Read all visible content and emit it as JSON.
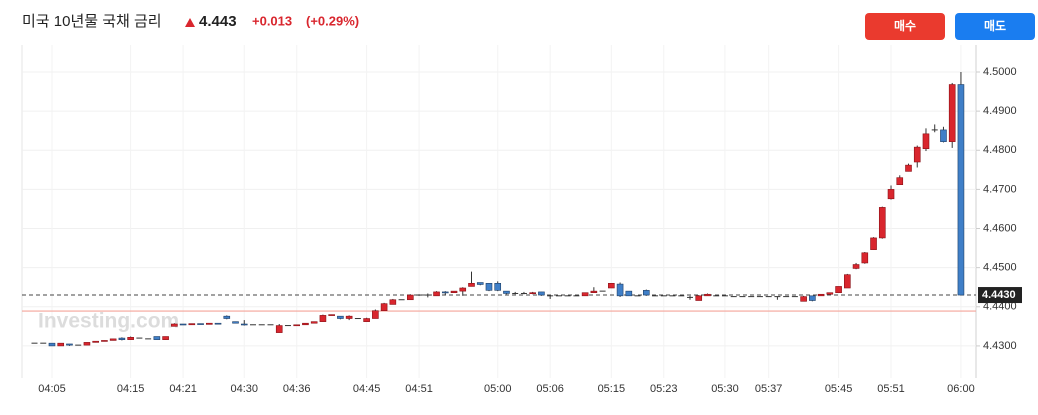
{
  "header": {
    "title": "미국 10년물 국채 금리",
    "price": 4.443,
    "change": "+0.013",
    "change_pct": "(+0.29%)",
    "buttons": [
      "매수",
      "매도"
    ]
  },
  "chart_data": {
    "type": "candlestick",
    "watermark": "Investing.com",
    "up_color": "#d9262e",
    "down_color": "#3f7fc8",
    "grid": true,
    "ylim": [
      4.4218,
      4.5069
    ],
    "yticks": [
      {
        "value": 4.43,
        "label": "4.4300"
      },
      {
        "value": 4.44,
        "label": "4.4400"
      },
      {
        "value": 4.45,
        "label": "4.4500"
      },
      {
        "value": 4.46,
        "label": "4.4600"
      },
      {
        "value": 4.47,
        "label": "4.4700"
      },
      {
        "value": 4.48,
        "label": "4.4800"
      },
      {
        "value": 4.49,
        "label": "4.4900"
      },
      {
        "value": 4.5,
        "label": "4.5000"
      }
    ],
    "last_price": {
      "value": 4.443,
      "label": "4.4430"
    },
    "reference_line": 4.4389,
    "categories": [
      null,
      null,
      "04:05",
      null,
      null,
      null,
      null,
      null,
      null,
      null,
      null,
      "04:15",
      null,
      null,
      null,
      null,
      null,
      "04:21",
      null,
      null,
      null,
      null,
      null,
      null,
      "04:30",
      null,
      null,
      null,
      null,
      null,
      "04:36",
      null,
      null,
      null,
      null,
      null,
      null,
      null,
      "04:45",
      null,
      null,
      null,
      null,
      null,
      "04:51",
      null,
      null,
      null,
      null,
      null,
      null,
      null,
      null,
      "05:00",
      null,
      null,
      null,
      null,
      null,
      "05:06",
      null,
      null,
      null,
      null,
      null,
      null,
      "05:15",
      null,
      null,
      null,
      null,
      null,
      "05:23",
      null,
      null,
      null,
      null,
      null,
      null,
      "05:30",
      null,
      null,
      null,
      null,
      "05:37",
      null,
      null,
      null,
      null,
      null,
      null,
      null,
      "05:45",
      null,
      null,
      null,
      null,
      null,
      "05:51",
      null,
      null,
      null,
      null,
      null,
      null,
      null,
      "06:00"
    ],
    "open": [
      4.4307,
      4.4307,
      4.4307,
      4.43,
      4.4305,
      4.4302,
      4.4302,
      4.4309,
      4.4312,
      4.4314,
      4.432,
      4.4316,
      4.432,
      4.4318,
      4.4324,
      4.4316,
      4.435,
      4.4356,
      4.4354,
      4.4357,
      4.4355,
      4.4358,
      4.4376,
      4.4362,
      4.4356,
      4.4354,
      4.4354,
      4.4354,
      4.4334,
      4.4352,
      4.4352,
      4.4354,
      4.4358,
      4.4362,
      4.4378,
      4.4376,
      4.437,
      4.437,
      4.4362,
      4.437,
      4.439,
      4.4406,
      4.4418,
      4.4418,
      4.443,
      4.443,
      4.4428,
      4.4438,
      4.4436,
      4.444,
      4.4452,
      4.4462,
      4.446,
      4.446,
      4.444,
      4.4434,
      4.4434,
      4.4434,
      4.4438,
      4.4428,
      4.4428,
      4.4428,
      4.4428,
      4.4428,
      4.4436,
      4.444,
      4.4448,
      4.4458,
      4.444,
      4.4428,
      4.4442,
      4.4428,
      4.4428,
      4.4428,
      4.4428,
      4.4424,
      4.4416,
      4.4428,
      4.4428,
      4.4428,
      4.4426,
      4.4426,
      4.4426,
      4.4426,
      4.4426,
      4.4426,
      4.4426,
      4.4426,
      4.4414,
      4.4428,
      4.4428,
      4.4432,
      4.4436,
      4.4448,
      4.4498,
      4.4512,
      4.4546,
      4.4576,
      4.4676,
      4.4712,
      4.4746,
      4.477,
      4.4804,
      4.4852,
      4.4852,
      4.4822,
      4.4968
    ],
    "high": [
      4.4307,
      4.4307,
      4.4307,
      4.4307,
      4.4305,
      4.4302,
      4.4309,
      4.4312,
      4.4314,
      4.4318,
      4.4322,
      4.4324,
      4.432,
      4.4318,
      4.4324,
      4.4324,
      4.4358,
      4.4356,
      4.4357,
      4.4357,
      4.4358,
      4.4358,
      4.4378,
      4.4362,
      4.4366,
      4.4354,
      4.4354,
      4.4354,
      4.4356,
      4.4352,
      4.4354,
      4.4358,
      4.4362,
      4.438,
      4.438,
      4.4376,
      4.4378,
      4.437,
      4.4372,
      4.4393,
      4.441,
      4.442,
      4.4418,
      4.4432,
      4.4432,
      4.4434,
      4.444,
      4.444,
      4.444,
      4.445,
      4.449,
      4.4462,
      4.446,
      4.4465,
      4.444,
      4.4438,
      4.4438,
      4.4438,
      4.4438,
      4.4428,
      4.4428,
      4.4428,
      4.4428,
      4.4436,
      4.445,
      4.444,
      4.446,
      4.4462,
      4.444,
      4.4428,
      4.4444,
      4.4428,
      4.4428,
      4.4428,
      4.4428,
      4.4428,
      4.443,
      4.4434,
      4.4428,
      4.4428,
      4.4426,
      4.4426,
      4.4426,
      4.4426,
      4.4426,
      4.4426,
      4.4426,
      4.4426,
      4.4428,
      4.4428,
      4.4432,
      4.4436,
      4.4452,
      4.4484,
      4.4512,
      4.454,
      4.4578,
      4.4656,
      4.471,
      4.4736,
      4.4766,
      4.4812,
      4.4856,
      4.4866,
      4.486,
      4.4972,
      4.5
    ],
    "low": [
      4.4307,
      4.4307,
      4.43,
      4.43,
      4.43,
      4.4302,
      4.4302,
      4.4309,
      4.4312,
      4.4314,
      4.4314,
      4.4316,
      4.432,
      4.4318,
      4.4316,
      4.4316,
      4.435,
      4.4354,
      4.4354,
      4.4355,
      4.4355,
      4.4356,
      4.4368,
      4.4358,
      4.4352,
      4.4354,
      4.4354,
      4.4354,
      4.4334,
      4.4352,
      4.4352,
      4.4354,
      4.4358,
      4.4362,
      4.4378,
      4.4368,
      4.4366,
      4.437,
      4.4362,
      4.437,
      4.439,
      4.4406,
      4.4418,
      4.4418,
      4.4428,
      4.4424,
      4.4428,
      4.443,
      4.4436,
      4.4428,
      4.4452,
      4.4455,
      4.444,
      4.444,
      4.4432,
      4.4432,
      4.4432,
      4.4432,
      4.4428,
      4.442,
      4.4428,
      4.4428,
      4.4428,
      4.4428,
      4.4436,
      4.444,
      4.4448,
      4.4425,
      4.4428,
      4.4428,
      4.4428,
      4.4428,
      4.4428,
      4.4428,
      4.4428,
      4.4418,
      4.4416,
      4.4428,
      4.4428,
      4.4428,
      4.4426,
      4.4426,
      4.4426,
      4.4426,
      4.4426,
      4.4418,
      4.4426,
      4.4426,
      4.4414,
      4.4414,
      4.4428,
      4.4432,
      4.4436,
      4.4448,
      4.4496,
      4.451,
      4.4546,
      4.4574,
      4.4674,
      4.4712,
      4.4746,
      4.4756,
      4.4798,
      4.4846,
      4.482,
      4.4806,
      4.443
    ],
    "close": [
      4.4307,
      4.4307,
      4.43,
      4.4307,
      4.4302,
      4.4302,
      4.4309,
      4.4312,
      4.4314,
      4.4318,
      4.4316,
      4.4322,
      4.432,
      4.4318,
      4.4316,
      4.4324,
      4.4356,
      4.4354,
      4.4357,
      4.4355,
      4.4358,
      4.4356,
      4.437,
      4.4358,
      4.4354,
      4.4354,
      4.4354,
      4.4354,
      4.4352,
      4.4352,
      4.4354,
      4.4358,
      4.4362,
      4.4378,
      4.438,
      4.437,
      4.4376,
      4.437,
      4.437,
      4.439,
      4.4408,
      4.4418,
      4.4418,
      4.443,
      4.443,
      4.443,
      4.4438,
      4.4436,
      4.444,
      4.4448,
      4.446,
      4.4457,
      4.4442,
      4.4442,
      4.4434,
      4.4434,
      4.4434,
      4.4436,
      4.443,
      4.4428,
      4.4428,
      4.4428,
      4.4428,
      4.4436,
      4.444,
      4.444,
      4.446,
      4.4428,
      4.4428,
      4.4428,
      4.443,
      4.4428,
      4.4428,
      4.4428,
      4.4428,
      4.4424,
      4.4428,
      4.4432,
      4.4428,
      4.4428,
      4.4426,
      4.4426,
      4.4426,
      4.4426,
      4.4426,
      4.4426,
      4.4426,
      4.4426,
      4.4426,
      4.4416,
      4.4432,
      4.4436,
      4.4452,
      4.4482,
      4.4508,
      4.4538,
      4.4576,
      4.4654,
      4.47,
      4.473,
      4.4762,
      4.4808,
      4.4842,
      4.4852,
      4.4822,
      4.4968,
      4.443
    ]
  }
}
